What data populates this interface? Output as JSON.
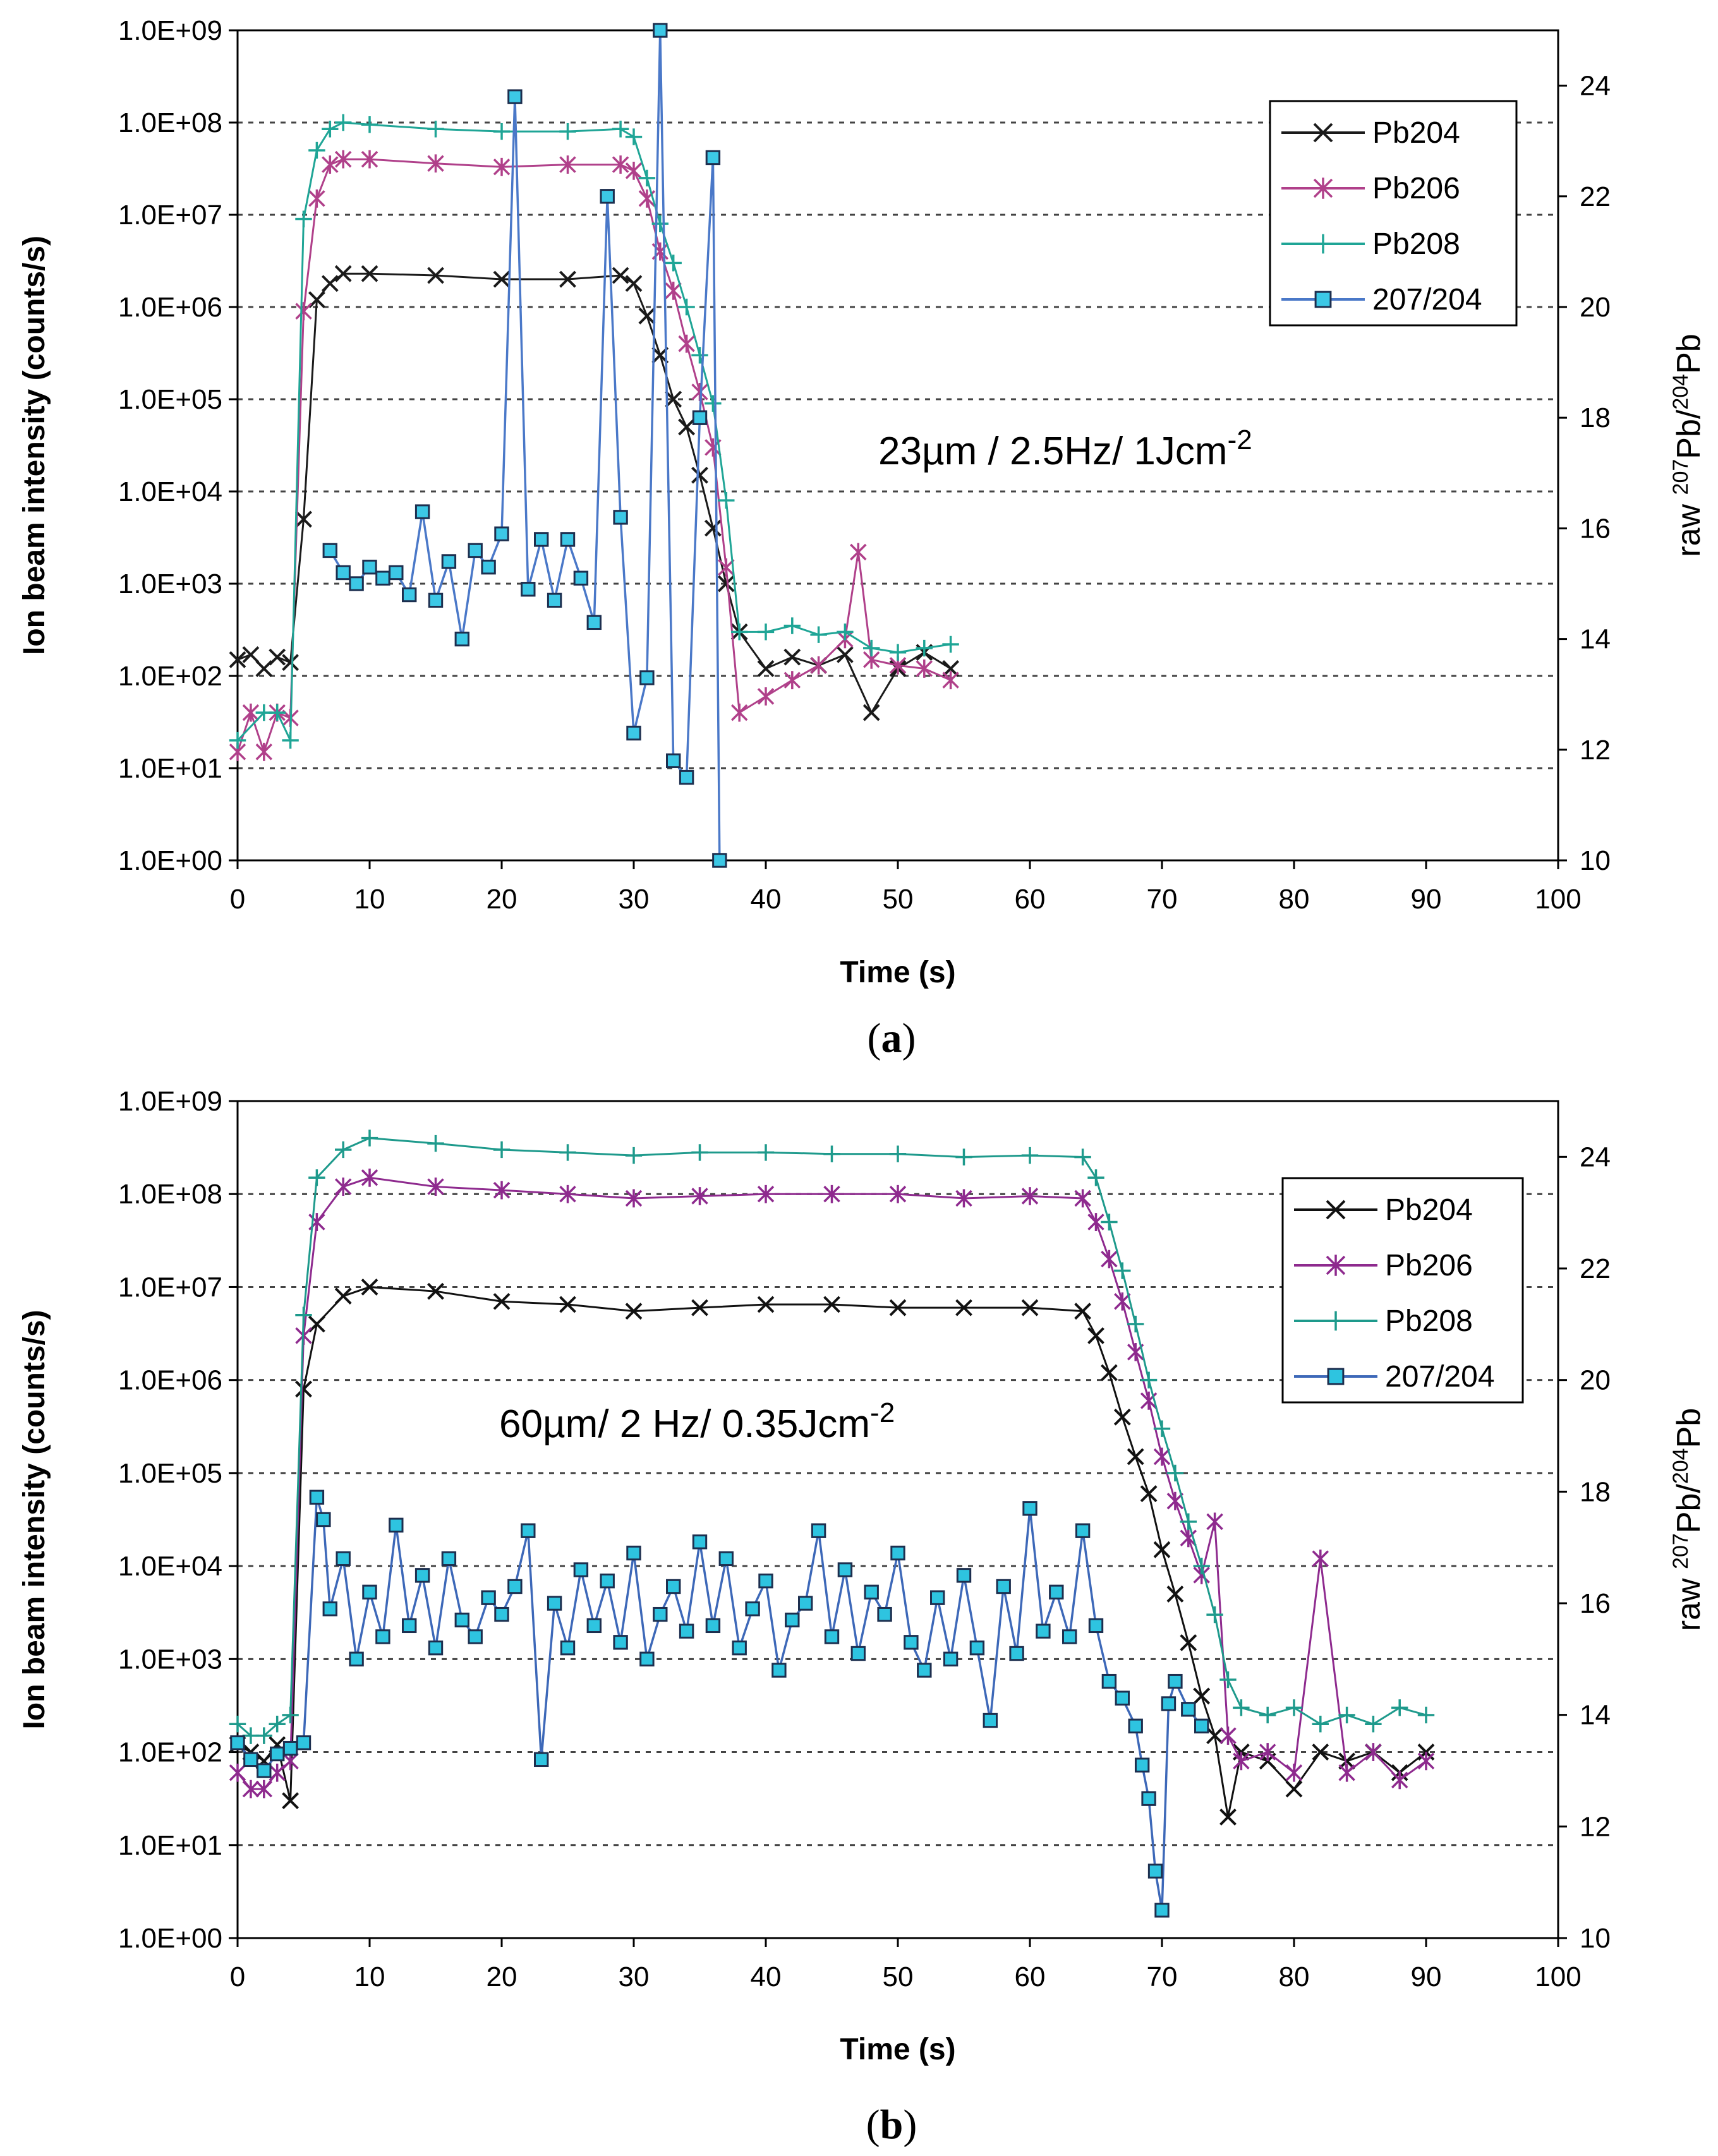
{
  "chart_data": [
    {
      "type": "line",
      "panel": "a",
      "caption_letter": "a",
      "annotation": "23µm / 2.5Hz/ 1Jcm",
      "annotation_sup": "-2",
      "xlabel": "Time (s)",
      "ylabel": "Ion beam intensity (counts/s)",
      "y2label_parts": [
        "raw ",
        "207",
        "Pb/",
        "204",
        "Pb"
      ],
      "xlim": [
        0,
        100
      ],
      "xticks": [
        "0",
        "10",
        "20",
        "30",
        "40",
        "50",
        "60",
        "70",
        "80",
        "90",
        "100"
      ],
      "yscale": "log",
      "ylim": [
        1,
        1000000000
      ],
      "yticks": [
        "1.0E+00",
        "1.0E+01",
        "1.0E+02",
        "1.0E+03",
        "1.0E+04",
        "1.0E+05",
        "1.0E+06",
        "1.0E+07",
        "1.0E+08",
        "1.0E+09"
      ],
      "y2lim": [
        10,
        25
      ],
      "y2ticks": [
        "10",
        "12",
        "14",
        "16",
        "18",
        "20",
        "22",
        "24"
      ],
      "legend_position": "top-right",
      "series": [
        {
          "name": "Pb204",
          "axis": "left",
          "color": "#1a1a1a",
          "marker": "x",
          "x": [
            0,
            1,
            2,
            3,
            4,
            5,
            6,
            7,
            8,
            10,
            15,
            20,
            25,
            29,
            30,
            31,
            32,
            33,
            34,
            35,
            36,
            37,
            38,
            40,
            42,
            44,
            46,
            48,
            50,
            52,
            54
          ],
          "y": [
            150,
            170,
            120,
            160,
            140,
            5000,
            1200000,
            1800000,
            2300000,
            2300000,
            2200000,
            2000000,
            2000000,
            2200000,
            1800000,
            800000,
            300000,
            100000,
            50000,
            15000,
            4000,
            1000,
            300,
            120,
            160,
            130,
            170,
            40,
            120,
            180,
            120
          ]
        },
        {
          "name": "Pb206",
          "axis": "left",
          "color": "#b0408a",
          "marker": "asterisk",
          "x": [
            0,
            1,
            2,
            3,
            4,
            5,
            6,
            7,
            8,
            10,
            15,
            20,
            25,
            29,
            30,
            31,
            32,
            33,
            34,
            35,
            36,
            37,
            38,
            40,
            42,
            44,
            46,
            47,
            48,
            50,
            52,
            54
          ],
          "y": [
            15,
            40,
            15,
            40,
            35,
            900000,
            15000000,
            35000000,
            40000000,
            40000000,
            36000000,
            33000000,
            35000000,
            35000000,
            30000000,
            15000000,
            4000000,
            1500000,
            400000,
            120000,
            30000,
            1500,
            40,
            60,
            90,
            130,
            250,
            2200,
            150,
            130,
            120,
            90
          ]
        },
        {
          "name": "Pb208",
          "axis": "left",
          "color": "#1fa596",
          "marker": "plus",
          "x": [
            0,
            2,
            3,
            4,
            5,
            6,
            7,
            8,
            10,
            15,
            20,
            25,
            29,
            30,
            31,
            32,
            33,
            34,
            35,
            36,
            37,
            38,
            40,
            42,
            44,
            46,
            48,
            50,
            52,
            54
          ],
          "y": [
            20,
            40,
            40,
            20,
            9000000,
            50000000,
            85000000,
            100000000,
            95000000,
            85000000,
            80000000,
            80000000,
            85000000,
            70000000,
            25000000,
            8000000,
            3000000,
            1000000,
            300000,
            90000,
            8000,
            300,
            300,
            350,
            280,
            300,
            200,
            180,
            200,
            220
          ]
        },
        {
          "name": "207/204",
          "axis": "right",
          "color": "#4a78c8",
          "marker": "square",
          "marker_fill": "#3cc8e6",
          "x": [
            7,
            8,
            9,
            10,
            11,
            12,
            13,
            14,
            15,
            16,
            17,
            18,
            19,
            20,
            21,
            22,
            23,
            24,
            25,
            26,
            27,
            28,
            29,
            30,
            31,
            32,
            33,
            34,
            35,
            36,
            36.5
          ],
          "y": [
            15.6,
            15.2,
            15.0,
            15.3,
            15.1,
            15.2,
            14.8,
            16.3,
            14.7,
            15.4,
            14.0,
            15.6,
            15.3,
            15.9,
            23.8,
            14.9,
            15.8,
            14.7,
            15.8,
            15.1,
            14.3,
            22.0,
            16.2,
            12.3,
            13.3,
            25.0,
            11.8,
            11.5,
            18.0,
            22.7,
            10.0
          ]
        }
      ]
    },
    {
      "type": "line",
      "panel": "b",
      "caption_letter": "b",
      "annotation": "60µm/ 2 Hz/ 0.35Jcm",
      "annotation_sup": "-2",
      "xlabel": "Time (s)",
      "ylabel": "Ion beam intensity (counts/s)",
      "y2label_parts": [
        "raw ",
        "207",
        "Pb/",
        "204",
        "Pb"
      ],
      "xlim": [
        0,
        100
      ],
      "xticks": [
        "0",
        "10",
        "20",
        "30",
        "40",
        "50",
        "60",
        "70",
        "80",
        "90",
        "100"
      ],
      "yscale": "log",
      "ylim": [
        1,
        1000000000
      ],
      "yticks": [
        "1.0E+00",
        "1.0E+01",
        "1.0E+02",
        "1.0E+03",
        "1.0E+04",
        "1.0E+05",
        "1.0E+06",
        "1.0E+07",
        "1.0E+08",
        "1.0E+09"
      ],
      "y2lim": [
        10,
        25
      ],
      "y2ticks": [
        "10",
        "12",
        "14",
        "16",
        "18",
        "20",
        "22",
        "24"
      ],
      "legend_position": "right",
      "series": [
        {
          "name": "Pb204",
          "axis": "left",
          "color": "#111111",
          "marker": "x",
          "x": [
            0,
            1,
            2,
            3,
            4,
            5,
            6,
            8,
            10,
            15,
            20,
            25,
            30,
            35,
            40,
            45,
            50,
            55,
            60,
            64,
            65,
            66,
            67,
            68,
            69,
            70,
            71,
            72,
            73,
            74,
            75,
            76,
            78,
            80,
            82,
            84,
            86,
            88,
            90
          ],
          "y": [
            120,
            100,
            80,
            120,
            30,
            800000,
            4000000,
            8000000,
            10000000,
            9000000,
            7000000,
            6500000,
            5500000,
            6000000,
            6500000,
            6500000,
            6000000,
            6000000,
            6000000,
            5500000,
            3000000,
            1200000,
            400000,
            150000,
            60000,
            15000,
            5000,
            1500,
            400,
            150,
            20,
            100,
            80,
            40,
            100,
            80,
            100,
            60,
            100
          ]
        },
        {
          "name": "Pb206",
          "axis": "left",
          "color": "#8e2a8e",
          "marker": "asterisk",
          "x": [
            0,
            1,
            2,
            3,
            4,
            5,
            6,
            8,
            10,
            15,
            20,
            25,
            30,
            35,
            40,
            45,
            50,
            55,
            60,
            64,
            65,
            66,
            67,
            68,
            69,
            70,
            71,
            72,
            73,
            74,
            75,
            76,
            78,
            80,
            82,
            84,
            86,
            88,
            90
          ],
          "y": [
            60,
            40,
            40,
            60,
            80,
            3000000,
            50000000,
            120000000,
            150000000,
            120000000,
            110000000,
            100000000,
            90000000,
            95000000,
            100000000,
            100000000,
            100000000,
            90000000,
            95000000,
            90000000,
            50000000,
            20000000,
            7000000,
            2000000,
            600000,
            150000,
            50000,
            20000,
            8000,
            30000,
            150,
            80,
            100,
            60,
            12000,
            60,
            100,
            50,
            80
          ]
        },
        {
          "name": "Pb208",
          "axis": "left",
          "color": "#1e9a8c",
          "marker": "plus",
          "x": [
            0,
            1,
            2,
            3,
            4,
            5,
            6,
            8,
            10,
            15,
            20,
            25,
            30,
            35,
            40,
            45,
            50,
            55,
            60,
            64,
            65,
            66,
            67,
            68,
            69,
            70,
            71,
            72,
            73,
            74,
            75,
            76,
            78,
            80,
            82,
            84,
            86,
            88,
            90
          ],
          "y": [
            200,
            150,
            150,
            200,
            250,
            5000000,
            150000000,
            300000000,
            400000000,
            350000000,
            300000000,
            280000000,
            260000000,
            280000000,
            280000000,
            270000000,
            270000000,
            250000000,
            260000000,
            250000000,
            150000000,
            50000000,
            15000000,
            4000000,
            1000000,
            300000,
            100000,
            30000,
            10000,
            3000,
            600,
            300,
            250,
            300,
            200,
            250,
            200,
            300,
            250
          ]
        },
        {
          "name": "207/204",
          "axis": "right",
          "color": "#3d68b8",
          "marker": "square",
          "marker_fill": "#2ec4e0",
          "x": [
            0,
            1,
            2,
            3,
            4,
            5,
            6,
            6.5,
            7,
            8,
            9,
            10,
            11,
            12,
            13,
            14,
            15,
            16,
            17,
            18,
            19,
            20,
            21,
            22,
            23,
            24,
            25,
            26,
            27,
            28,
            29,
            30,
            31,
            32,
            33,
            34,
            35,
            36,
            37,
            38,
            39,
            40,
            41,
            42,
            43,
            44,
            45,
            46,
            47,
            48,
            49,
            50,
            51,
            52,
            53,
            54,
            55,
            56,
            57,
            58,
            59,
            60,
            61,
            62,
            63,
            64,
            65,
            66,
            67,
            68,
            68.5,
            69,
            69.5,
            70,
            70.5,
            71,
            72,
            73
          ],
          "y": [
            13.5,
            13.2,
            13.0,
            13.3,
            13.4,
            13.5,
            17.9,
            17.5,
            15.9,
            16.8,
            15.0,
            16.2,
            15.4,
            17.4,
            15.6,
            16.5,
            15.2,
            16.8,
            15.7,
            15.4,
            16.1,
            15.8,
            16.3,
            17.3,
            13.2,
            16.0,
            15.2,
            16.6,
            15.6,
            16.4,
            15.3,
            16.9,
            15.0,
            15.8,
            16.3,
            15.5,
            17.1,
            15.6,
            16.8,
            15.2,
            15.9,
            16.4,
            14.8,
            15.7,
            16.0,
            17.3,
            15.4,
            16.6,
            15.1,
            16.2,
            15.8,
            16.9,
            15.3,
            14.8,
            16.1,
            15.0,
            16.5,
            15.2,
            13.9,
            16.3,
            15.1,
            17.7,
            15.5,
            16.2,
            15.4,
            17.3,
            15.6,
            14.6,
            14.3,
            13.8,
            13.1,
            12.5,
            11.2,
            10.5,
            14.2,
            14.6,
            14.1,
            13.8
          ]
        }
      ]
    }
  ]
}
